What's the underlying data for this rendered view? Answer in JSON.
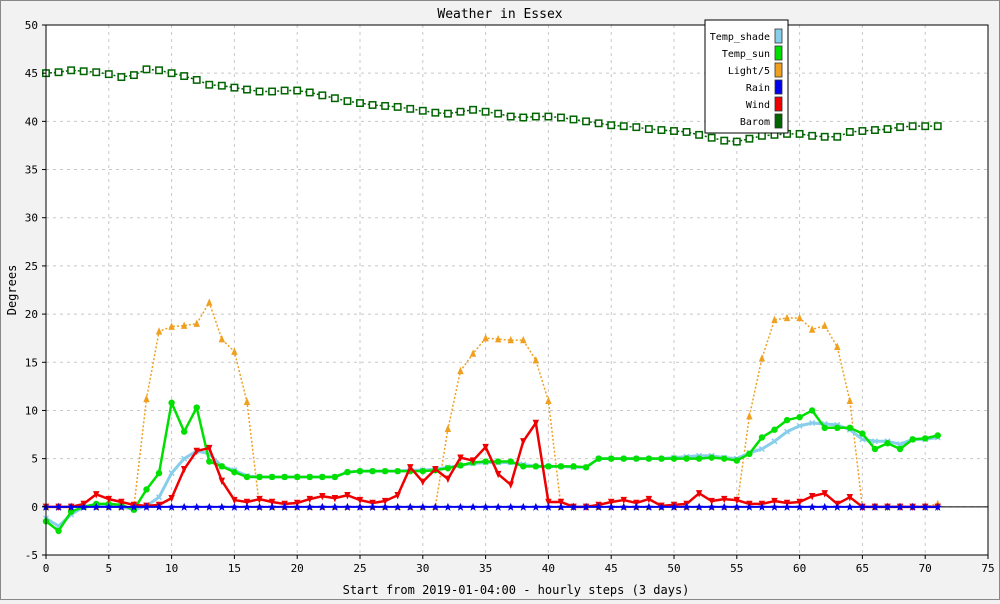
{
  "chart_data": {
    "type": "line",
    "title": "Weather in Essex",
    "xlabel": "Start from 2019-01-04:00 - hourly steps (3 days)",
    "ylabel": "Degrees",
    "xlim": [
      0,
      75
    ],
    "ylim": [
      -5,
      50
    ],
    "xticks": [
      0,
      5,
      10,
      15,
      20,
      25,
      30,
      35,
      40,
      45,
      50,
      55,
      60,
      65,
      70,
      75
    ],
    "yticks": [
      -5,
      0,
      5,
      10,
      15,
      20,
      25,
      30,
      35,
      40,
      45,
      50
    ],
    "grid": true,
    "legend_position": "top-right",
    "series": [
      {
        "name": "Temp_shade",
        "color": "#87ceeb",
        "marker": "x-cross",
        "values": [
          -1.2,
          -2.0,
          -0.8,
          0.0,
          0.2,
          0.1,
          0.0,
          -0.3,
          0.1,
          1.0,
          3.5,
          5.0,
          5.8,
          5.5,
          4.2,
          3.8,
          3.2,
          3.1,
          3.1,
          3.1,
          3.1,
          3.1,
          3.1,
          3.1,
          3.6,
          3.7,
          3.7,
          3.7,
          3.7,
          3.8,
          3.8,
          3.9,
          4.1,
          4.3,
          4.5,
          4.6,
          4.6,
          4.6,
          4.4,
          4.2,
          4.2,
          4.2,
          4.1,
          4.1,
          5.0,
          5.0,
          5.0,
          5.0,
          5.0,
          5.0,
          5.1,
          5.2,
          5.3,
          5.3,
          5.1,
          5.0,
          5.6,
          6.0,
          6.8,
          7.8,
          8.4,
          8.7,
          8.6,
          8.5,
          8.0,
          7.0,
          6.8,
          6.8,
          6.5,
          7.0,
          7.0,
          7.2
        ]
      },
      {
        "name": "Temp_sun",
        "color": "#00e000",
        "marker": "circle",
        "values": [
          -1.5,
          -2.5,
          -0.5,
          0.0,
          0.3,
          0.3,
          0.2,
          -0.3,
          1.8,
          3.5,
          10.8,
          7.8,
          10.3,
          4.7,
          4.2,
          3.6,
          3.1,
          3.1,
          3.1,
          3.1,
          3.1,
          3.1,
          3.1,
          3.1,
          3.6,
          3.7,
          3.7,
          3.7,
          3.7,
          3.7,
          3.7,
          3.8,
          4.0,
          4.3,
          4.6,
          4.7,
          4.7,
          4.7,
          4.2,
          4.2,
          4.2,
          4.2,
          4.2,
          4.1,
          5.0,
          5.0,
          5.0,
          5.0,
          5.0,
          5.0,
          5.0,
          5.0,
          5.0,
          5.1,
          5.0,
          4.8,
          5.5,
          7.2,
          8.0,
          9.0,
          9.3,
          10.0,
          8.2,
          8.2,
          8.2,
          7.6,
          6.0,
          6.6,
          6.0,
          7.0,
          7.1,
          7.4
        ]
      },
      {
        "name": "Light/5",
        "color": "#f0a020",
        "marker": "triangle-up",
        "values": [
          0,
          0,
          0,
          0,
          0,
          0,
          0,
          0,
          11.2,
          18.2,
          18.7,
          18.8,
          19.0,
          21.2,
          17.4,
          16.1,
          10.9,
          0,
          0,
          0,
          0,
          0,
          0,
          0,
          0,
          0,
          0,
          0,
          0,
          0,
          0,
          0,
          8.1,
          14.1,
          15.9,
          17.5,
          17.4,
          17.3,
          17.3,
          15.2,
          11.0,
          0,
          0,
          0,
          0,
          0,
          0,
          0,
          0,
          0,
          0,
          0,
          0,
          0,
          0,
          0,
          9.4,
          15.4,
          19.4,
          19.6,
          19.6,
          18.4,
          18.8,
          16.6,
          11.0,
          0,
          0,
          0,
          0,
          0,
          0,
          0.3
        ]
      },
      {
        "name": "Rain",
        "color": "#0000ee",
        "marker": "star",
        "values": [
          0,
          0,
          0,
          0,
          0,
          0,
          0,
          0,
          0,
          0,
          0,
          0,
          0,
          0,
          0,
          0,
          0,
          0,
          0,
          0,
          0,
          0,
          0,
          0,
          0,
          0,
          0,
          0,
          0,
          0,
          0,
          0,
          0,
          0,
          0,
          0,
          0,
          0,
          0,
          0,
          0,
          0,
          0,
          0,
          0,
          0,
          0,
          0,
          0,
          0,
          0,
          0,
          0,
          0,
          0,
          0,
          0,
          0,
          0,
          0,
          0,
          0,
          0,
          0,
          0,
          0,
          0,
          0,
          0,
          0,
          0,
          0
        ]
      },
      {
        "name": "Wind",
        "color": "#ee0000",
        "marker": "triangle-down",
        "values": [
          0,
          0,
          0,
          0.3,
          1.3,
          0.8,
          0.5,
          0.2,
          0.1,
          0.2,
          0.9,
          3.9,
          5.8,
          6.1,
          2.7,
          0.7,
          0.5,
          0.8,
          0.5,
          0.3,
          0.4,
          0.8,
          1.1,
          0.9,
          1.2,
          0.7,
          0.4,
          0.6,
          1.2,
          4.1,
          2.6,
          3.9,
          2.9,
          5.1,
          4.8,
          6.2,
          3.4,
          2.3,
          6.8,
          8.7,
          0.5,
          0.5,
          0.0,
          0.0,
          0.2,
          0.5,
          0.7,
          0.4,
          0.8,
          0.1,
          0.2,
          0.3,
          1.4,
          0.6,
          0.8,
          0.7,
          0.3,
          0.3,
          0.6,
          0.4,
          0.5,
          1.1,
          1.4,
          0.3,
          1.0,
          0,
          0,
          0,
          0,
          0,
          0,
          0
        ]
      },
      {
        "name": "Barom",
        "color": "#006400",
        "marker": "square",
        "values": [
          45.0,
          45.1,
          45.3,
          45.2,
          45.1,
          44.9,
          44.6,
          44.8,
          45.4,
          45.3,
          45.0,
          44.7,
          44.3,
          43.8,
          43.7,
          43.5,
          43.3,
          43.1,
          43.1,
          43.2,
          43.2,
          43.0,
          42.7,
          42.4,
          42.1,
          41.9,
          41.7,
          41.6,
          41.5,
          41.3,
          41.1,
          40.9,
          40.8,
          41.0,
          41.2,
          41.0,
          40.8,
          40.5,
          40.4,
          40.5,
          40.5,
          40.4,
          40.2,
          40.0,
          39.8,
          39.6,
          39.5,
          39.4,
          39.2,
          39.1,
          39.0,
          38.9,
          38.6,
          38.3,
          38.0,
          37.9,
          38.2,
          38.5,
          38.6,
          38.7,
          38.7,
          38.5,
          38.4,
          38.4,
          38.9,
          39.0,
          39.1,
          39.2,
          39.4,
          39.5,
          39.5,
          39.5
        ]
      }
    ]
  }
}
